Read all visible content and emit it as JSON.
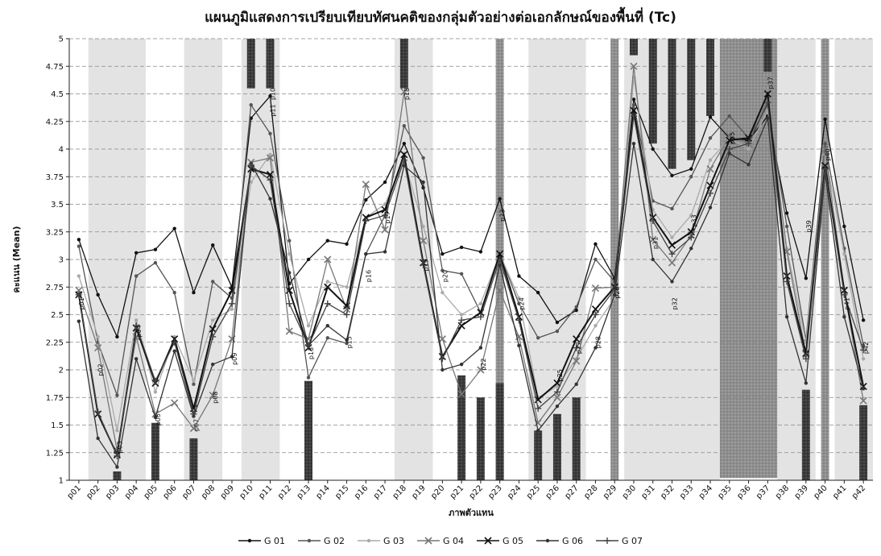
{
  "chart_data": {
    "type": "line",
    "title": "แผนภูมิแสดงการเปรียบเทียบทัศนคติของกลุ่มตัวอย่างต่อเอกลักษณ์ของพื้นที่ (Tc)",
    "xlabel": "ภาพตัวแทน",
    "ylabel": "คะแนน (Mean)",
    "ylim": [
      1,
      5
    ],
    "yticks": [
      "1",
      "1.25",
      "1.5",
      "1.75",
      "2",
      "2.25",
      "2.5",
      "2.75",
      "3",
      "3.25",
      "3.5",
      "3.75",
      "4",
      "4.25",
      "4.5",
      "4.75",
      "5"
    ],
    "grid": true,
    "legend_position": "bottom",
    "categories": [
      "p01",
      "p02",
      "p03",
      "p04",
      "p05",
      "p06",
      "p07",
      "p08",
      "p09",
      "p10",
      "p11",
      "p12",
      "p13",
      "p14",
      "p15",
      "p16",
      "p17",
      "p18",
      "p19",
      "p20",
      "p21",
      "p22",
      "p23",
      "p24",
      "p25",
      "p26",
      "p27",
      "p28",
      "p29",
      "p30",
      "p31",
      "p32",
      "p33",
      "p34",
      "p35",
      "p36",
      "p37",
      "p38",
      "p39",
      "p40",
      "p41",
      "p42"
    ],
    "point_labels": [
      {
        "text": "p01",
        "x": "p01",
        "y": 2.6
      },
      {
        "text": "p02",
        "x": "p02",
        "y": 2.0
      },
      {
        "text": "p03",
        "x": "p03",
        "y": 1.3
      },
      {
        "text": "p04",
        "x": "p04",
        "y": 2.35
      },
      {
        "text": "p05",
        "x": "p05",
        "y": 1.55
      },
      {
        "text": "p07",
        "x": "p07",
        "y": 1.5
      },
      {
        "text": "p08",
        "x": "p08",
        "y": 1.75
      },
      {
        "text": "p09",
        "x": "p09",
        "y": 2.1
      },
      {
        "text": "p10",
        "x": "p11",
        "y": 4.5
      },
      {
        "text": "p11",
        "x": "p11",
        "y": 4.35
      },
      {
        "text": "p13",
        "x": "p13",
        "y": 2.15
      },
      {
        "text": "p15",
        "x": "p15",
        "y": 2.25
      },
      {
        "text": "p16",
        "x": "p16",
        "y": 2.85
      },
      {
        "text": "p17",
        "x": "p17",
        "y": 3.38
      },
      {
        "text": "p18",
        "x": "p18",
        "y": 4.5
      },
      {
        "text": "p19",
        "x": "p19",
        "y": 2.95
      },
      {
        "text": "p20",
        "x": "p20",
        "y": 2.85
      },
      {
        "text": "p22",
        "x": "p22",
        "y": 2.05
      },
      {
        "text": "p23",
        "x": "p23",
        "y": 3.4
      },
      {
        "text": "p24",
        "x": "p24",
        "y": 2.6
      },
      {
        "text": "p25",
        "x": "p26",
        "y": 1.95
      },
      {
        "text": "p27",
        "x": "p27",
        "y": 2.2
      },
      {
        "text": "p28",
        "x": "p28",
        "y": 2.25
      },
      {
        "text": "p29",
        "x": "p29",
        "y": 2.7
      },
      {
        "text": "p31",
        "x": "p31",
        "y": 3.15
      },
      {
        "text": "p32",
        "x": "p32",
        "y": 2.6
      },
      {
        "text": "p33",
        "x": "p33",
        "y": 3.35
      },
      {
        "text": "p35",
        "x": "p35",
        "y": 4.1
      },
      {
        "text": "p37",
        "x": "p37",
        "y": 4.6
      },
      {
        "text": "p39",
        "x": "p39",
        "y": 3.3
      },
      {
        "text": "p40",
        "x": "p40",
        "y": 3.95
      },
      {
        "text": "p41",
        "x": "p41",
        "y": 2.6
      },
      {
        "text": "p42",
        "x": "p42",
        "y": 2.2
      }
    ],
    "light_bands": [
      {
        "from": "p02",
        "to": "p04"
      },
      {
        "from": "p07",
        "to": "p08"
      },
      {
        "from": "p10",
        "to": "p11"
      },
      {
        "from": "p18",
        "to": "p19"
      },
      {
        "from": "p25",
        "to": "p27"
      },
      {
        "from": "p30",
        "to": "p34"
      },
      {
        "from": "p38",
        "to": "p39"
      },
      {
        "from": "p41",
        "to": "p42"
      }
    ],
    "medium_bands": [
      {
        "from": "p23",
        "to": "p23"
      },
      {
        "from": "p29",
        "to": "p29"
      },
      {
        "from": "p40",
        "to": "p40"
      }
    ],
    "dark_blocks": [
      {
        "x": "p10",
        "from": 4.55,
        "to": 5
      },
      {
        "x": "p11",
        "from": 4.55,
        "to": 5
      },
      {
        "x": "p18",
        "from": 4.55,
        "to": 5
      },
      {
        "x": "p30",
        "from": 4.85,
        "to": 5
      },
      {
        "x": "p31",
        "from": 4.05,
        "to": 5
      },
      {
        "x": "p32",
        "from": 3.82,
        "to": 5
      },
      {
        "x": "p33",
        "from": 3.9,
        "to": 5
      },
      {
        "x": "p34",
        "from": 4.3,
        "to": 5
      },
      {
        "x": "p37",
        "from": 4.7,
        "to": 5
      },
      {
        "x": "p03",
        "from": 1,
        "to": 1.08
      },
      {
        "x": "p05",
        "from": 1,
        "to": 1.52
      },
      {
        "x": "p07",
        "from": 1,
        "to": 1.38
      },
      {
        "x": "p13",
        "from": 1,
        "to": 1.9
      },
      {
        "x": "p21",
        "from": 1,
        "to": 1.95
      },
      {
        "x": "p22",
        "from": 1,
        "to": 1.75
      },
      {
        "x": "p23",
        "from": 1,
        "to": 1.88
      },
      {
        "x": "p25",
        "from": 1,
        "to": 1.45
      },
      {
        "x": "p26",
        "from": 1,
        "to": 1.6
      },
      {
        "x": "p27",
        "from": 1,
        "to": 1.75
      },
      {
        "x": "p39",
        "from": 1,
        "to": 1.82
      },
      {
        "x": "p42",
        "from": 1,
        "to": 1.68
      }
    ],
    "dark_region": {
      "from": "p35",
      "to": "p37",
      "ymin": 1.02,
      "ymax": 5
    },
    "series": [
      {
        "name": "G 01",
        "color": "#111111",
        "marker": "dot",
        "values": [
          3.18,
          2.68,
          2.3,
          3.06,
          3.09,
          3.28,
          2.7,
          3.13,
          2.75,
          4.28,
          4.48,
          2.78,
          3.0,
          3.17,
          3.14,
          3.54,
          3.7,
          4.05,
          3.65,
          3.05,
          3.11,
          3.07,
          3.55,
          2.85,
          2.7,
          2.43,
          2.54,
          3.14,
          2.83,
          4.45,
          4.0,
          3.76,
          3.82,
          4.29,
          4.1,
          4.08,
          4.3,
          3.42,
          2.83,
          4.27,
          3.3,
          2.45
        ]
      },
      {
        "name": "G 02",
        "color": "#555555",
        "marker": "dot",
        "values": [
          3.12,
          2.25,
          1.77,
          2.85,
          2.97,
          2.7,
          1.87,
          2.8,
          2.65,
          4.4,
          4.14,
          3.17,
          1.93,
          2.29,
          2.24,
          3.05,
          3.4,
          4.21,
          3.92,
          2.9,
          2.87,
          2.52,
          3.05,
          2.6,
          2.29,
          2.35,
          2.57,
          3.0,
          2.8,
          4.4,
          3.53,
          3.46,
          3.75,
          4.1,
          4.3,
          4.1,
          4.4,
          3.3,
          2.27,
          4.05,
          3.1,
          2.22
        ]
      },
      {
        "name": "G 03",
        "color": "#aaaaaa",
        "marker": "dot",
        "values": [
          2.85,
          2.3,
          1.45,
          2.45,
          1.8,
          2.3,
          1.9,
          2.45,
          2.55,
          3.7,
          3.95,
          3.05,
          2.4,
          2.8,
          2.75,
          3.38,
          3.5,
          3.9,
          3.3,
          2.7,
          2.5,
          2.6,
          3.05,
          2.65,
          1.75,
          1.85,
          2.1,
          2.4,
          2.65,
          4.65,
          3.45,
          3.2,
          3.4,
          3.9,
          4.1,
          4.0,
          4.35,
          3.1,
          2.25,
          3.95,
          3.05,
          2.1
        ]
      },
      {
        "name": "G 04",
        "color": "#777777",
        "marker": "x",
        "values": [
          2.72,
          2.2,
          1.27,
          2.3,
          1.6,
          1.7,
          1.47,
          1.77,
          2.28,
          3.88,
          3.92,
          2.35,
          2.28,
          3.0,
          2.55,
          3.68,
          3.27,
          4.52,
          3.17,
          2.28,
          1.78,
          2.0,
          2.72,
          2.3,
          1.52,
          1.75,
          2.08,
          2.74,
          2.75,
          4.75,
          3.18,
          2.97,
          3.22,
          3.82,
          4.12,
          4.05,
          4.45,
          3.07,
          2.14,
          4.0,
          2.72,
          1.72
        ]
      },
      {
        "name": "G 05",
        "color": "#111111",
        "marker": "x",
        "values": [
          2.68,
          1.6,
          1.23,
          2.38,
          1.88,
          2.28,
          1.65,
          2.37,
          2.72,
          3.82,
          3.77,
          2.72,
          2.2,
          2.75,
          2.58,
          3.38,
          3.45,
          3.95,
          2.97,
          2.12,
          2.4,
          2.52,
          3.05,
          2.48,
          1.73,
          1.88,
          2.28,
          2.55,
          2.75,
          4.35,
          3.38,
          3.13,
          3.25,
          3.67,
          4.08,
          4.1,
          4.5,
          2.85,
          2.15,
          3.85,
          2.72,
          1.85
        ]
      },
      {
        "name": "G 06",
        "color": "#333333",
        "marker": "dot",
        "values": [
          2.44,
          1.38,
          1.12,
          2.1,
          1.57,
          2.17,
          1.58,
          2.05,
          2.12,
          3.87,
          3.55,
          2.88,
          2.22,
          2.4,
          2.27,
          3.05,
          3.07,
          3.85,
          3.7,
          2.0,
          2.05,
          2.2,
          2.95,
          2.22,
          1.45,
          1.67,
          1.87,
          2.2,
          2.68,
          4.05,
          3.0,
          2.8,
          3.1,
          3.47,
          3.96,
          3.86,
          4.28,
          2.48,
          1.88,
          3.78,
          2.48,
          1.83
        ]
      },
      {
        "name": "G 07",
        "color": "#444444",
        "marker": "plus",
        "values": [
          2.68,
          1.62,
          1.22,
          2.4,
          1.9,
          2.25,
          1.6,
          2.3,
          2.6,
          3.85,
          3.72,
          2.6,
          2.22,
          2.6,
          2.5,
          3.35,
          3.4,
          3.9,
          2.95,
          2.1,
          2.45,
          2.48,
          3.0,
          2.45,
          1.65,
          1.8,
          2.2,
          2.5,
          2.73,
          4.3,
          3.35,
          3.05,
          3.2,
          3.6,
          4.0,
          4.05,
          4.42,
          2.8,
          2.1,
          3.82,
          2.68,
          2.18
        ]
      }
    ]
  }
}
